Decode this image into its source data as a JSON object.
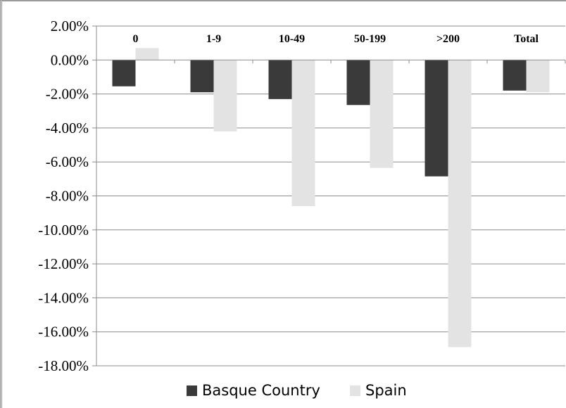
{
  "chart_data": {
    "type": "bar",
    "categories": [
      "0",
      "1-9",
      "10-49",
      "50-199",
      ">200",
      "Total"
    ],
    "series": [
      {
        "name": "Basque Country",
        "values": [
          -1.55,
          -1.9,
          -2.3,
          -2.65,
          -6.85,
          -1.8
        ],
        "color": "#3a3a3a"
      },
      {
        "name": "Spain",
        "values": [
          0.7,
          -4.2,
          -8.6,
          -6.35,
          -16.9,
          -1.9
        ],
        "color": "#e3e3e3"
      }
    ],
    "yticks": [
      "2.00%",
      "0.00%",
      "-2.00%",
      "-4.00%",
      "-6.00%",
      "-8.00%",
      "-10.00%",
      "-12.00%",
      "-14.00%",
      "-16.00%",
      "-18.00%"
    ],
    "ylim": [
      -18,
      2
    ],
    "title": "",
    "xlabel": "",
    "ylabel": "",
    "legend": "bottom",
    "grid": true
  }
}
